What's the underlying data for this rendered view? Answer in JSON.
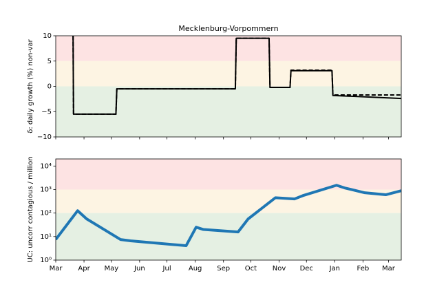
{
  "chart_data": [
    {
      "type": "line",
      "title": "Mecklenburg-Vorpommern",
      "ylabel": "δ: daily growth (%) non-var",
      "xlim": [
        0,
        379
      ],
      "xticks": [
        0,
        31,
        61,
        92,
        122,
        153,
        184,
        214,
        245,
        275,
        306,
        337,
        365
      ],
      "ylim": [
        -10,
        10
      ],
      "yticks": [
        10,
        5,
        0,
        {
          "value": -5,
          "label": "−5"
        },
        {
          "value": -10,
          "label": "−10"
        }
      ],
      "bands": [
        {
          "from": 5,
          "to": 10,
          "color": "#fde3e3"
        },
        {
          "from": 0,
          "to": 5,
          "color": "#fdf4e3"
        },
        {
          "from": -10,
          "to": 0,
          "color": "#e5f0e3"
        }
      ],
      "series": [
        {
          "color": "#000000",
          "linestyle": "solid",
          "x": [
            19,
            19.5,
            66,
            67,
            197,
            198,
            234,
            235,
            257,
            258,
            303,
            304,
            379
          ],
          "values": [
            10,
            -5.5,
            -5.5,
            -0.5,
            -0.5,
            9.5,
            9.5,
            -0.2,
            -0.2,
            3.1,
            3.1,
            -1.8,
            -2.4
          ]
        },
        {
          "color": "#000000",
          "linestyle": "dashed",
          "x": [
            19,
            19.5,
            66,
            67,
            197,
            198,
            234,
            235,
            257,
            258,
            303,
            304,
            379
          ],
          "values": [
            10,
            -5.5,
            -5.5,
            -0.5,
            -0.5,
            9.5,
            9.5,
            -0.2,
            -0.2,
            3.2,
            3.2,
            -1.7,
            -1.7
          ]
        }
      ]
    },
    {
      "type": "line",
      "ylabel": "UC: uncorr contagious / million",
      "yscale": "log",
      "xlim": [
        0,
        379
      ],
      "xticks": [
        {
          "value": 0,
          "label": "Mar"
        },
        {
          "value": 31,
          "label": "Apr"
        },
        {
          "value": 61,
          "label": "May"
        },
        {
          "value": 92,
          "label": "Jun"
        },
        {
          "value": 122,
          "label": "Jul"
        },
        {
          "value": 153,
          "label": "Aug"
        },
        {
          "value": 184,
          "label": "Sep"
        },
        {
          "value": 214,
          "label": "Oct"
        },
        {
          "value": 245,
          "label": "Nov"
        },
        {
          "value": 275,
          "label": "Dec"
        },
        {
          "value": 306,
          "label": "Jan"
        },
        {
          "value": 337,
          "label": "Feb"
        },
        {
          "value": 365,
          "label": "Mar"
        }
      ],
      "ylim": [
        1,
        20000
      ],
      "yticks": [
        {
          "value": 1,
          "label": "10⁰"
        },
        {
          "value": 10,
          "label": "10¹"
        },
        {
          "value": 100,
          "label": "10²"
        },
        {
          "value": 1000,
          "label": "10³"
        },
        {
          "value": 10000,
          "label": "10⁴"
        }
      ],
      "bands": [
        {
          "from": 1000,
          "to": 20000,
          "color": "#fde3e3"
        },
        {
          "from": 100,
          "to": 1000,
          "color": "#fdf4e3"
        },
        {
          "from": 1,
          "to": 100,
          "color": "#e5f0e3"
        }
      ],
      "series": [
        {
          "color": "#1f77b4",
          "linestyle": "solid",
          "x": [
            0,
            24,
            34,
            71,
            82,
            143,
            154,
            162,
            200,
            211,
            241,
            262,
            271,
            308,
            317,
            339,
            362,
            379
          ],
          "values": [
            7.5,
            126,
            56,
            7.5,
            6.6,
            4.1,
            25,
            20,
            15.7,
            56,
            450,
            400,
            550,
            1520,
            1170,
            730,
            600,
            890
          ]
        }
      ]
    }
  ]
}
